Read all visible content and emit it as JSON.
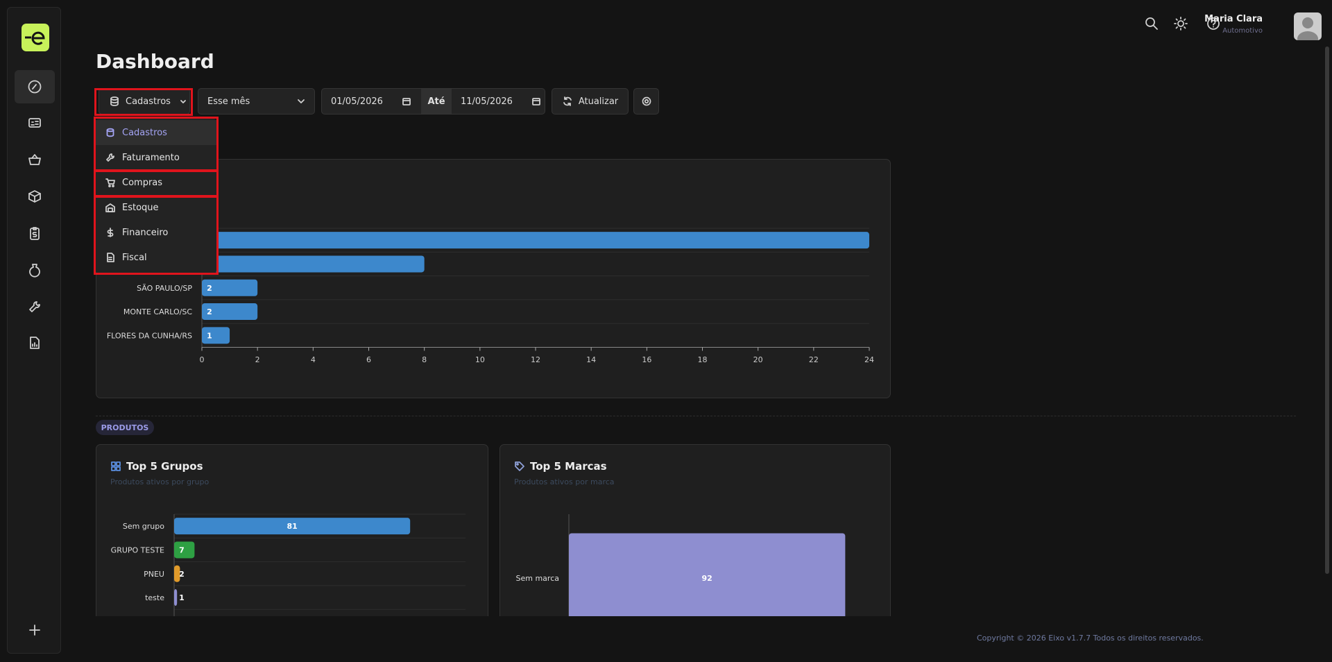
{
  "header": {
    "user_name": "Maria Clara",
    "user_role": "Automotivo"
  },
  "page_title": "Dashboard",
  "toolbar": {
    "module": "Cadastros",
    "period": "Esse mês",
    "date_from": "01/05/2026",
    "date_to_label": "Até",
    "date_to": "11/05/2026",
    "refresh": "Atualizar"
  },
  "menu": {
    "items": [
      "Cadastros",
      "Faturamento",
      "Compras",
      "Estoque",
      "Financeiro",
      "Fiscal"
    ]
  },
  "section_label": "PRODUTOS",
  "chart_data": [
    {
      "type": "bar",
      "orientation": "horizontal",
      "categories": [
        null,
        null,
        "SÃO PAULO/SP",
        "MONTE CARLO/SC",
        "FLORES DA CUNHA/RS"
      ],
      "values": [
        24,
        8,
        2,
        2,
        1
      ],
      "color": "#3d88cc",
      "xlim": [
        0,
        24
      ],
      "xticks": [
        0,
        2,
        4,
        6,
        8,
        10,
        12,
        14,
        16,
        18,
        20,
        22,
        24
      ],
      "grid": true
    },
    {
      "type": "bar",
      "orientation": "horizontal",
      "title": "Top 5 Grupos",
      "subtitle": "Produtos ativos por grupo",
      "categories": [
        "Sem grupo",
        "GRUPO TESTE",
        "PNEU",
        "teste"
      ],
      "values": [
        81,
        7,
        2,
        1
      ],
      "colors": [
        "#3d88cc",
        "#2ea043",
        "#e09a2a",
        "#8e8ed0"
      ],
      "xlim": [
        0,
        100
      ],
      "grid": true
    },
    {
      "type": "bar",
      "orientation": "horizontal",
      "title": "Top 5 Marcas",
      "subtitle": "Produtos ativos por marca",
      "categories": [
        "Sem marca"
      ],
      "values": [
        92
      ],
      "colors": [
        "#8e8ed0"
      ],
      "xlim": [
        0,
        100
      ],
      "grid": false
    }
  ],
  "footer": "Copyright © 2026 Eixo v1.7.7 Todos os direitos reservados."
}
